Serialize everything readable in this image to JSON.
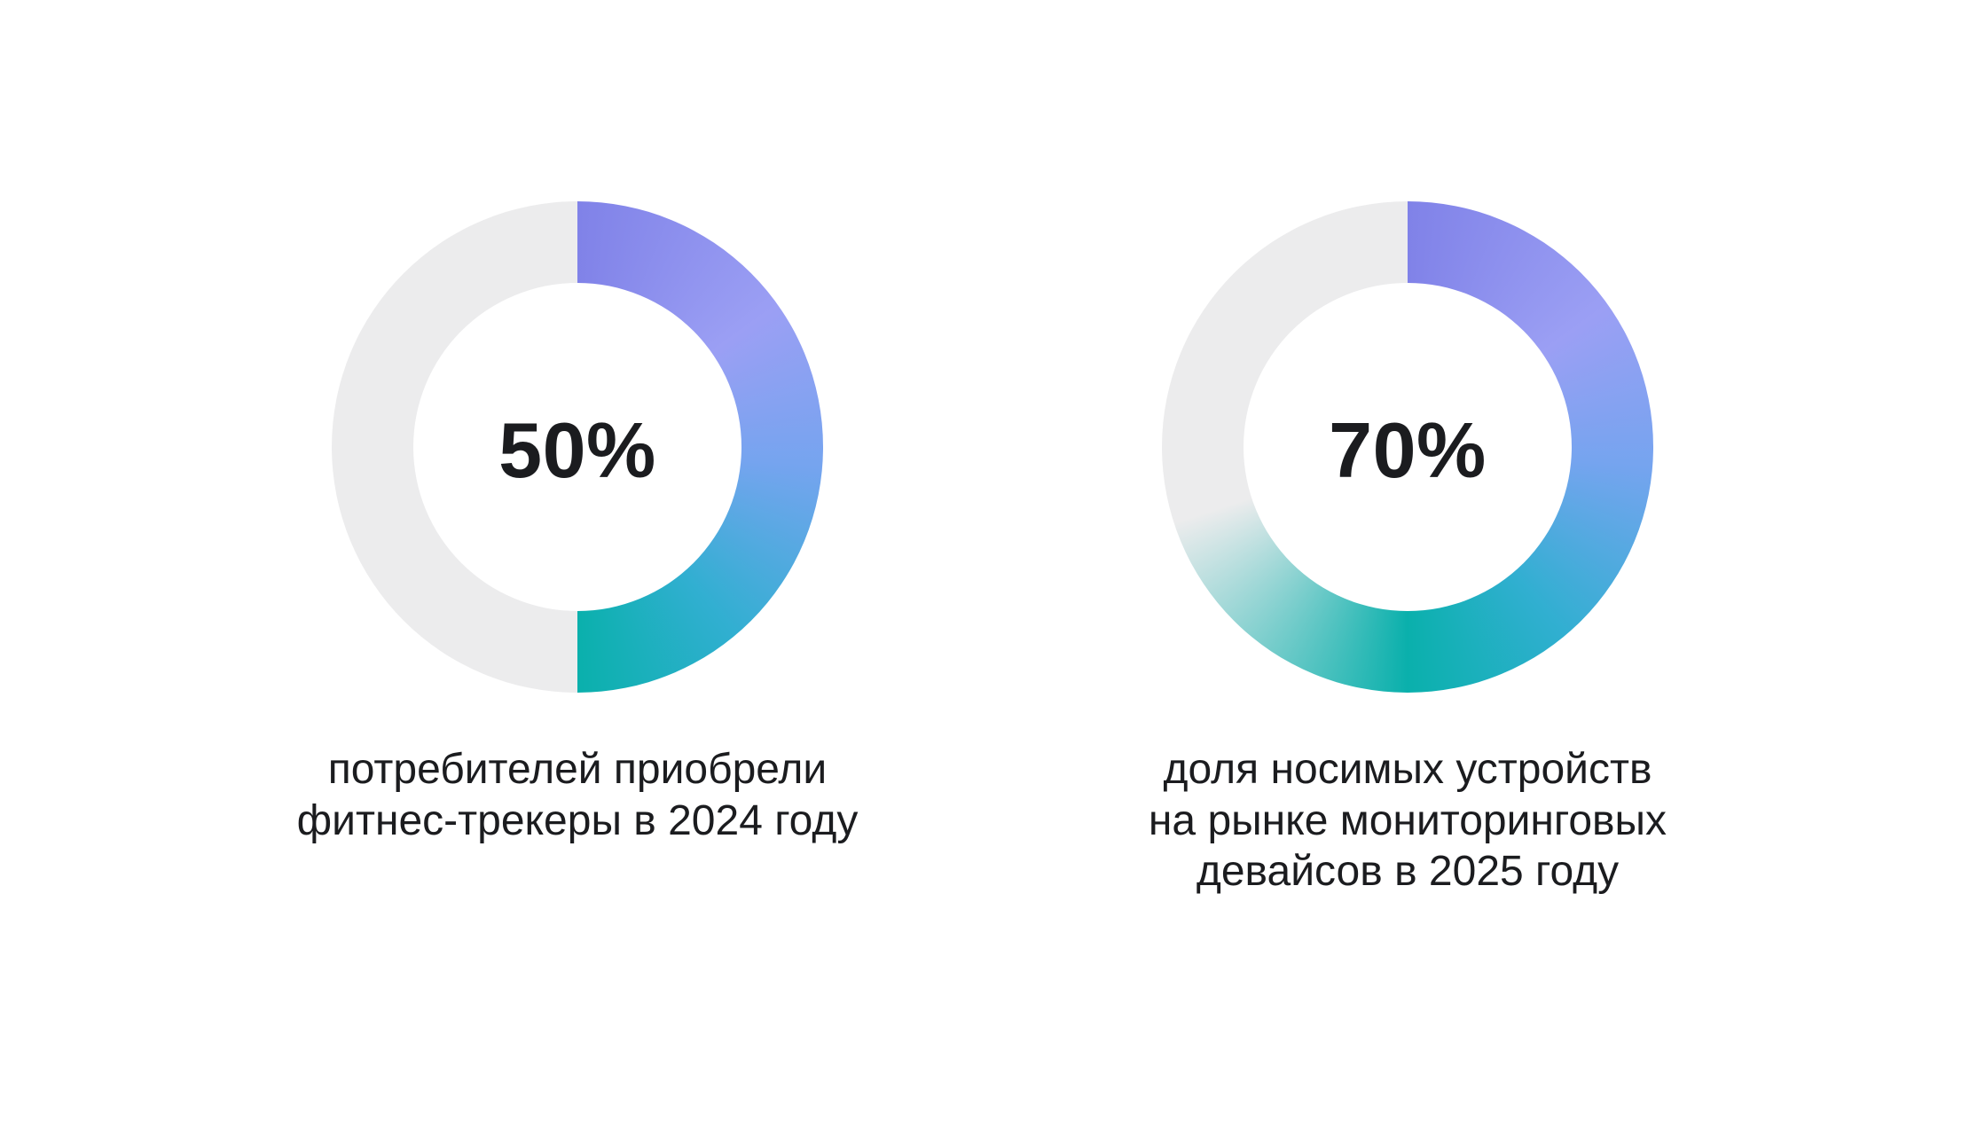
{
  "page": {
    "background": "#ffffff"
  },
  "colors": {
    "track": "#ECECED",
    "text": "#1B1C1F",
    "gradient_stops": [
      {
        "angle": 0,
        "color": "#8082E8"
      },
      {
        "angle": 55,
        "color": "#9B9FF4"
      },
      {
        "angle": 95,
        "color": "#75A4EF"
      },
      {
        "angle": 140,
        "color": "#31AFD1"
      },
      {
        "angle": 180,
        "color": "#0AB0AC"
      },
      {
        "angle": 252,
        "color": "#2A79DA"
      }
    ]
  },
  "chart_data": [
    {
      "type": "donut",
      "value": 50,
      "max": 100,
      "start_angle_deg": 0,
      "sweep_deg": 180,
      "center_label": "50%",
      "caption_lines": [
        "потребителей приобрели",
        "фитнес-трекеры в 2024 году"
      ]
    },
    {
      "type": "donut",
      "value": 70,
      "max": 100,
      "start_angle_deg": 0,
      "sweep_deg": 252,
      "center_label": "70%",
      "caption_lines": [
        "доля носимых устройств",
        "на рынке мониторинговых",
        "девайсов в 2025 году"
      ]
    }
  ]
}
